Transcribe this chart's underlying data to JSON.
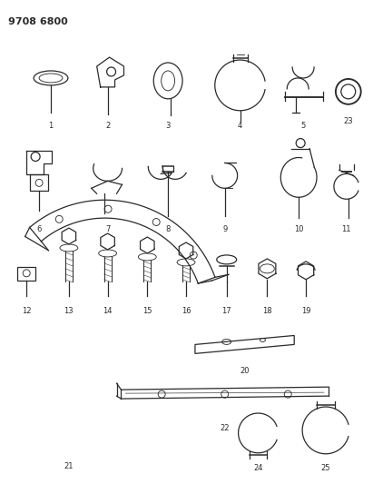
{
  "title": "9708 6800",
  "bg_color": "#ffffff",
  "line_color": "#2a2a2a",
  "title_fontsize": 8,
  "label_fontsize": 6,
  "figsize": [
    4.11,
    5.33
  ],
  "dpi": 100
}
